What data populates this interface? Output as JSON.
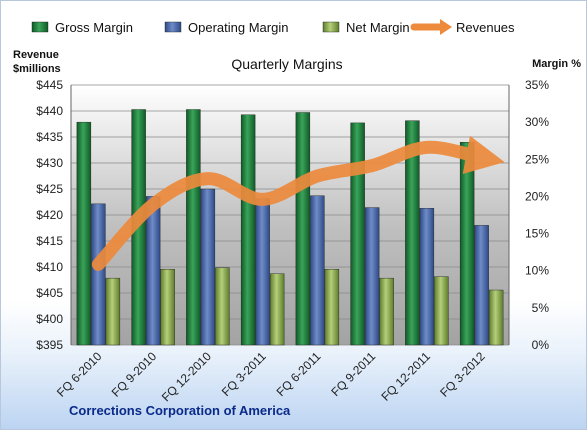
{
  "chart_data": {
    "type": "bar",
    "title": "Quarterly Margins",
    "caption": "Corrections Corporation of America",
    "y_left_label_line1": "Revenue",
    "y_left_label_line2": "$millions",
    "y_right_label": "Margin %",
    "categories": [
      "FQ 6-2010",
      "FQ 9-2010",
      "FQ 12-2010",
      "FQ 3-2011",
      "FQ 6-2011",
      "FQ 9-2011",
      "FQ 12-2011",
      "FQ 3-2012"
    ],
    "y_left_ticks": [
      "$445",
      "$440",
      "$435",
      "$430",
      "$425",
      "$420",
      "$415",
      "$410",
      "$405",
      "$400",
      "$395"
    ],
    "y_right_ticks": [
      "35%",
      "30%",
      "25%",
      "20%",
      "15%",
      "10%",
      "5%",
      "0%"
    ],
    "y_left_range": [
      395,
      445
    ],
    "y_right_range": [
      0,
      35
    ],
    "legend_position": "top",
    "grid": true,
    "series": [
      {
        "name": "Gross Margin",
        "axis": "right",
        "color": "#1f7a3a",
        "values": [
          30.0,
          31.7,
          31.7,
          31.0,
          31.3,
          29.9,
          30.2,
          27.3
        ]
      },
      {
        "name": "Operating Margin",
        "axis": "right",
        "color": "#4a67a8",
        "values": [
          19.0,
          20.0,
          21.0,
          19.7,
          20.1,
          18.5,
          18.4,
          16.1
        ]
      },
      {
        "name": "Net Margin",
        "axis": "right",
        "color": "#8cab4c",
        "values": [
          9.0,
          10.2,
          10.4,
          9.6,
          10.2,
          9.0,
          9.2,
          7.4
        ]
      },
      {
        "name": "Revenues",
        "axis": "left",
        "type": "line",
        "color": "#ed8a3c",
        "values": [
          410.5,
          422.0,
          427.0,
          423.0,
          427.5,
          429.5,
          433.0,
          431.0
        ]
      }
    ]
  }
}
